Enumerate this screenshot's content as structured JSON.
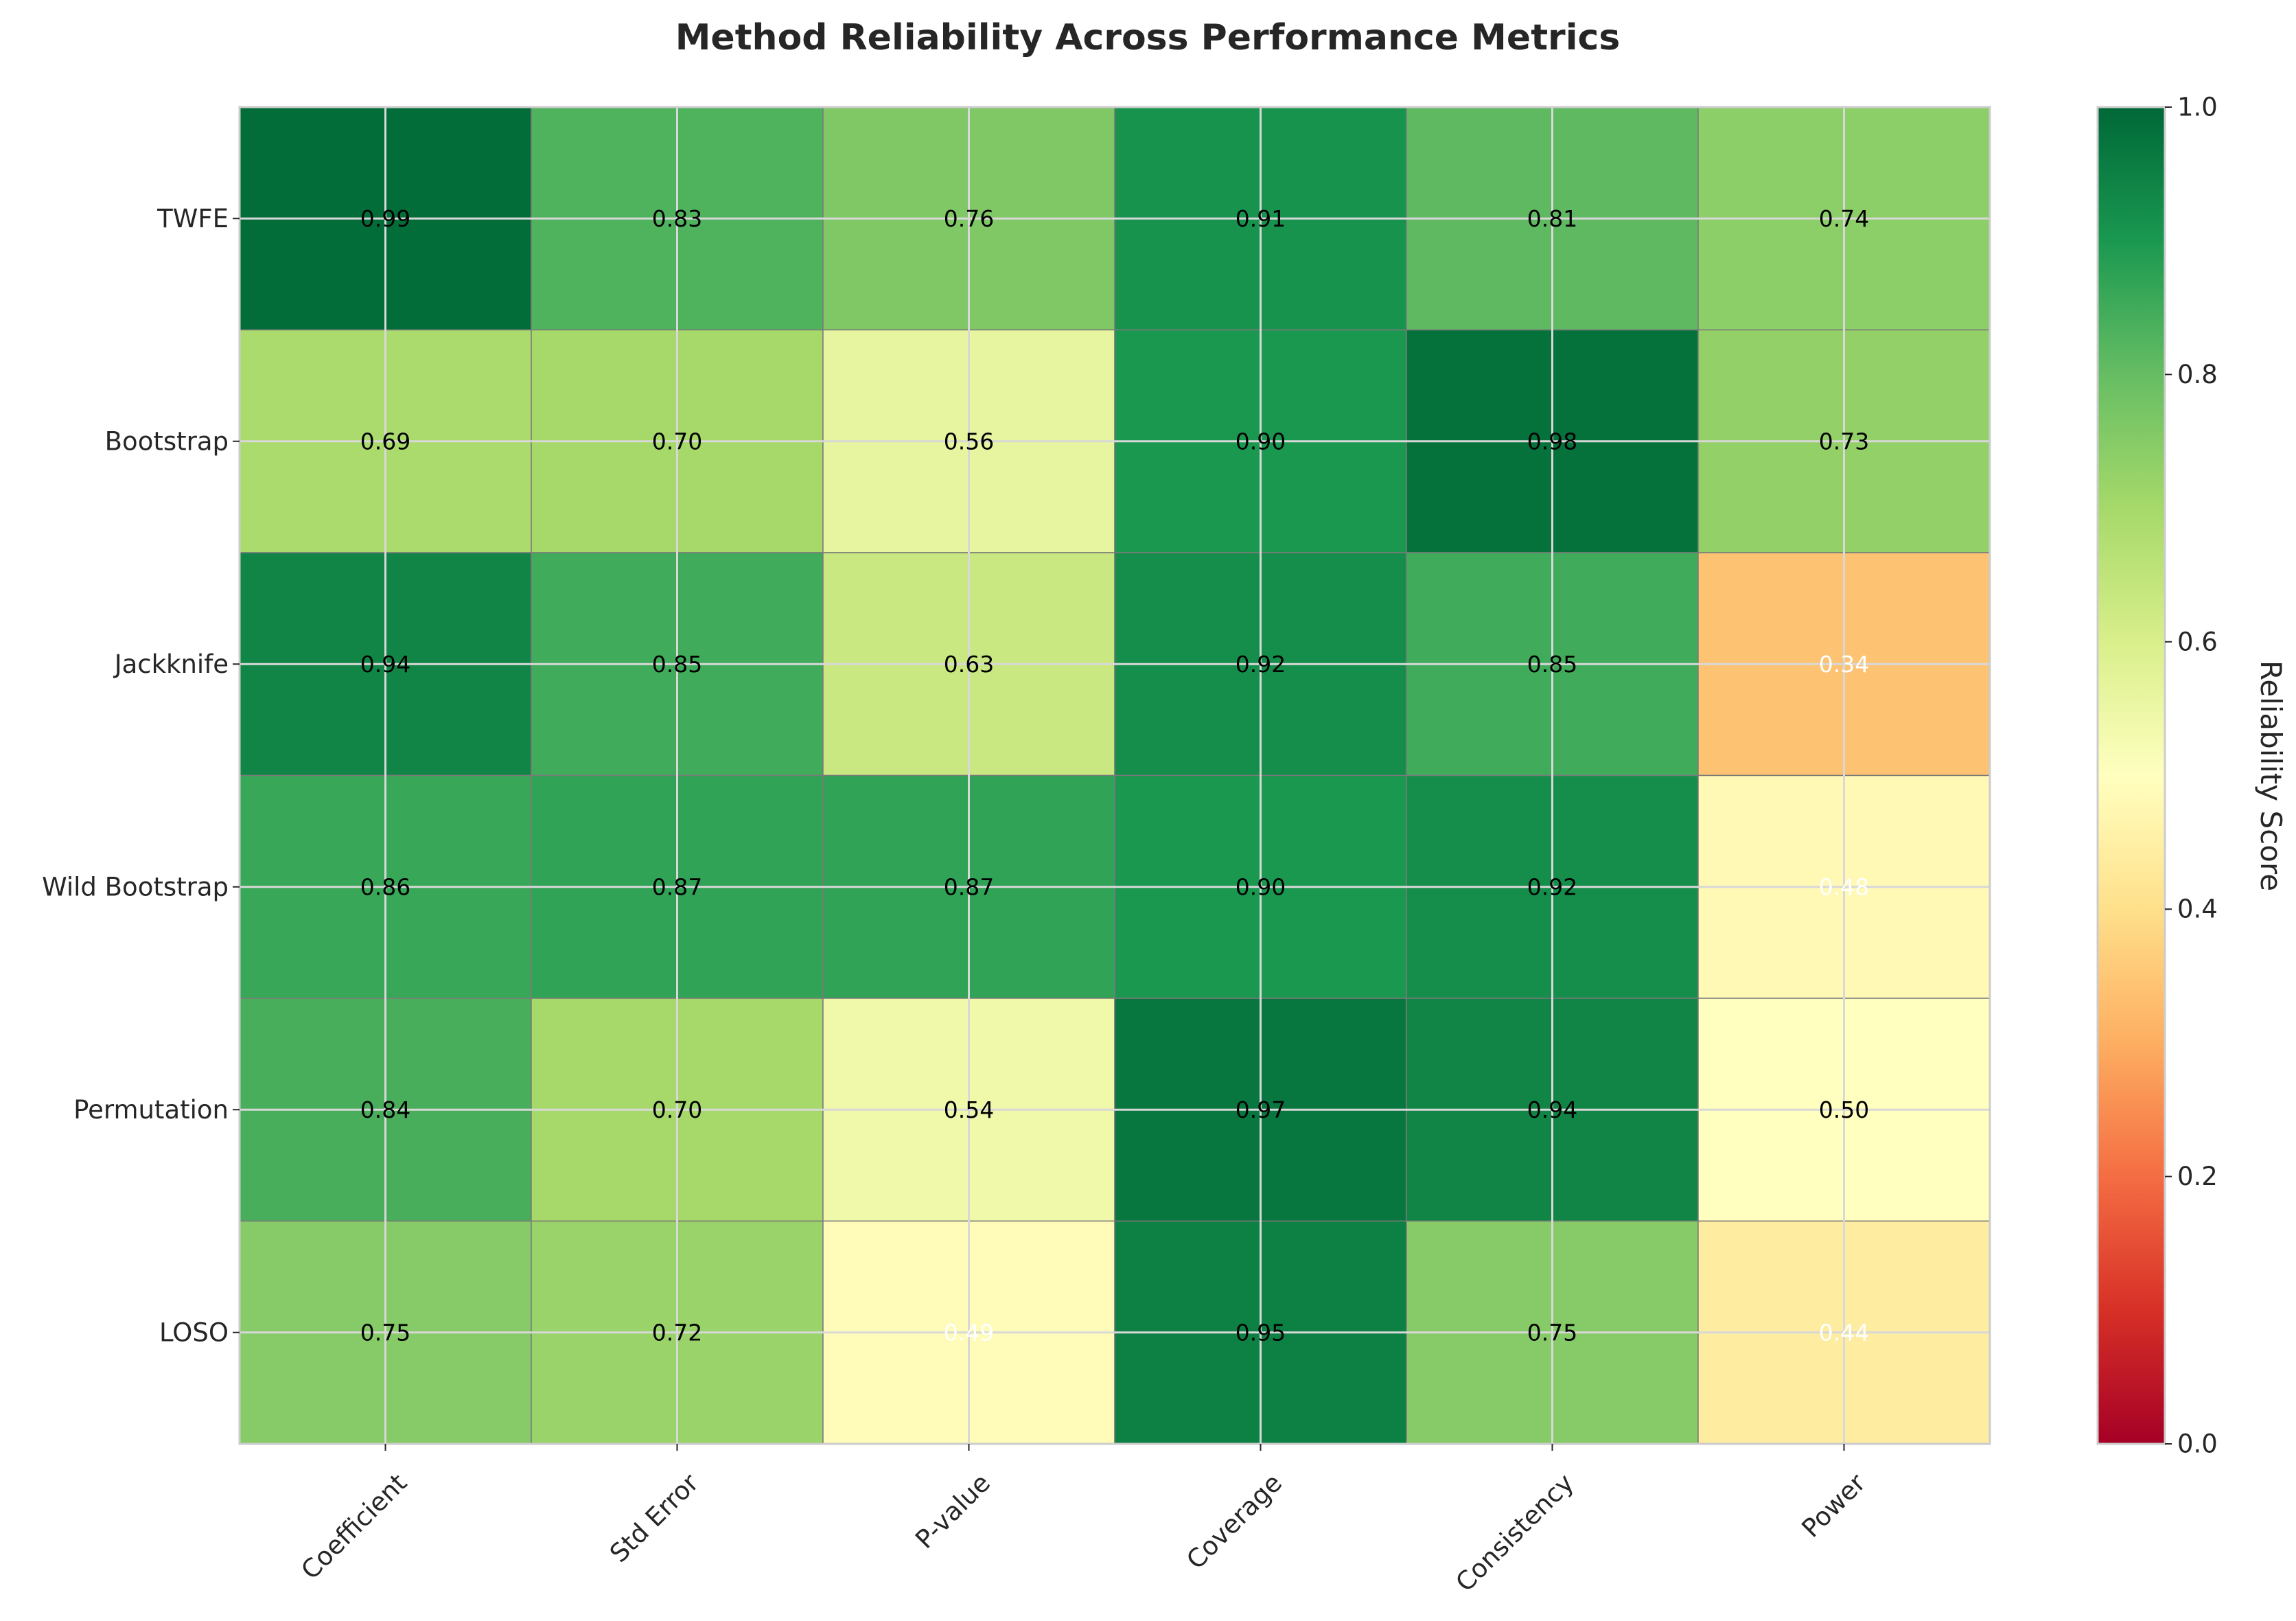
{
  "chart_data": {
    "type": "heatmap",
    "title": "Method Reliability Across Performance Metrics",
    "rows": [
      "TWFE",
      "Bootstrap",
      "Jackknife",
      "Wild Bootstrap",
      "Permutation",
      "LOSO"
    ],
    "columns": [
      "Coefficient",
      "Std Error",
      "P-value",
      "Coverage",
      "Consistency",
      "Power"
    ],
    "values": [
      [
        0.99,
        0.83,
        0.76,
        0.91,
        0.81,
        0.74
      ],
      [
        0.69,
        0.7,
        0.56,
        0.9,
        0.98,
        0.73
      ],
      [
        0.94,
        0.85,
        0.63,
        0.92,
        0.85,
        0.34
      ],
      [
        0.86,
        0.87,
        0.87,
        0.9,
        0.92,
        0.48
      ],
      [
        0.84,
        0.7,
        0.54,
        0.97,
        0.94,
        0.5
      ],
      [
        0.75,
        0.72,
        0.49,
        0.95,
        0.75,
        0.44
      ]
    ],
    "value_labels": [
      [
        "0.99",
        "0.83",
        "0.76",
        "0.91",
        "0.81",
        "0.74"
      ],
      [
        "0.69",
        "0.70",
        "0.56",
        "0.90",
        "0.98",
        "0.73"
      ],
      [
        "0.94",
        "0.85",
        "0.63",
        "0.92",
        "0.85",
        "0.34"
      ],
      [
        "0.86",
        "0.87",
        "0.87",
        "0.90",
        "0.92",
        "0.48"
      ],
      [
        "0.84",
        "0.70",
        "0.54",
        "0.97",
        "0.94",
        "0.50"
      ],
      [
        "0.75",
        "0.72",
        "0.49",
        "0.95",
        "0.75",
        "0.44"
      ]
    ],
    "colormap": "RdYlGn",
    "value_range": [
      0,
      1
    ],
    "colorbar": {
      "label": "Reliability Score",
      "ticks": [
        "0.0",
        "0.2",
        "0.4",
        "0.6",
        "0.8",
        "1.0"
      ]
    },
    "grid": true,
    "label_color_dark": "#000000",
    "label_color_light": "#ffffff"
  }
}
